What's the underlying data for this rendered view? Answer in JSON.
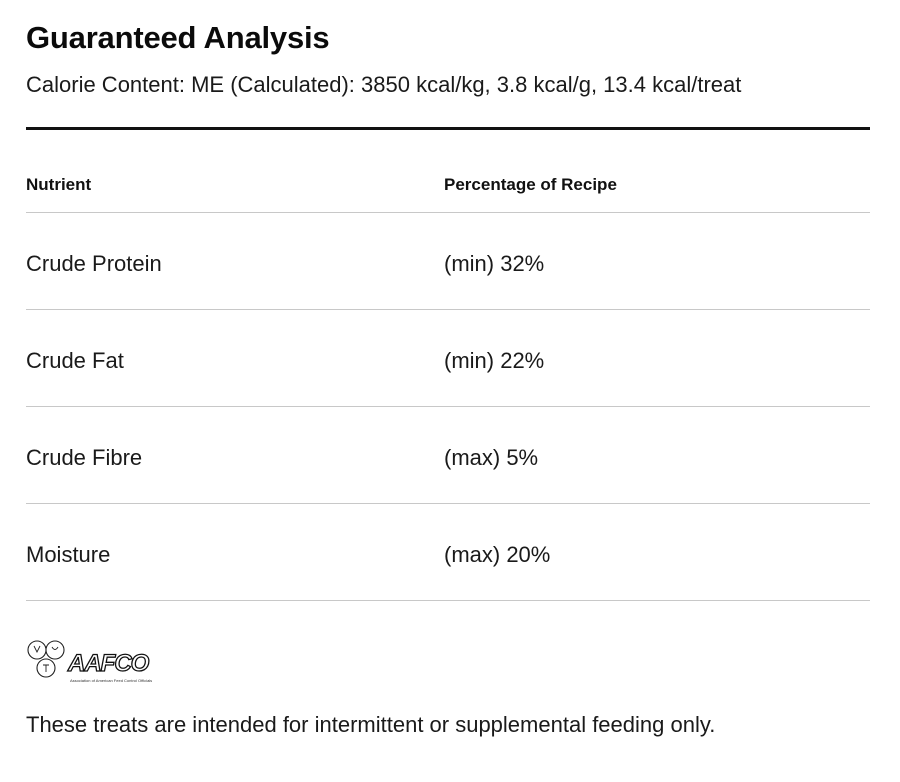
{
  "header": {
    "title": "Guaranteed Analysis",
    "calorie_content": "Calorie Content: ME (Calculated): 3850 kcal/kg, 3.8 kcal/g, 13.4 kcal/treat"
  },
  "table": {
    "columns": [
      "Nutrient",
      "Percentage of Recipe"
    ],
    "rows": [
      {
        "nutrient": "Crude Protein",
        "percentage": "(min) 32%"
      },
      {
        "nutrient": "Crude Fat",
        "percentage": "(min) 22%"
      },
      {
        "nutrient": "Crude Fibre",
        "percentage": "(max) 5%"
      },
      {
        "nutrient": "Moisture",
        "percentage": "(max) 20%"
      }
    ]
  },
  "logo": {
    "wordmark": "AAFCO",
    "tagline": "Association of American Feed Control Officials"
  },
  "footnote": "These treats are intended for intermittent or supplemental feeding only."
}
